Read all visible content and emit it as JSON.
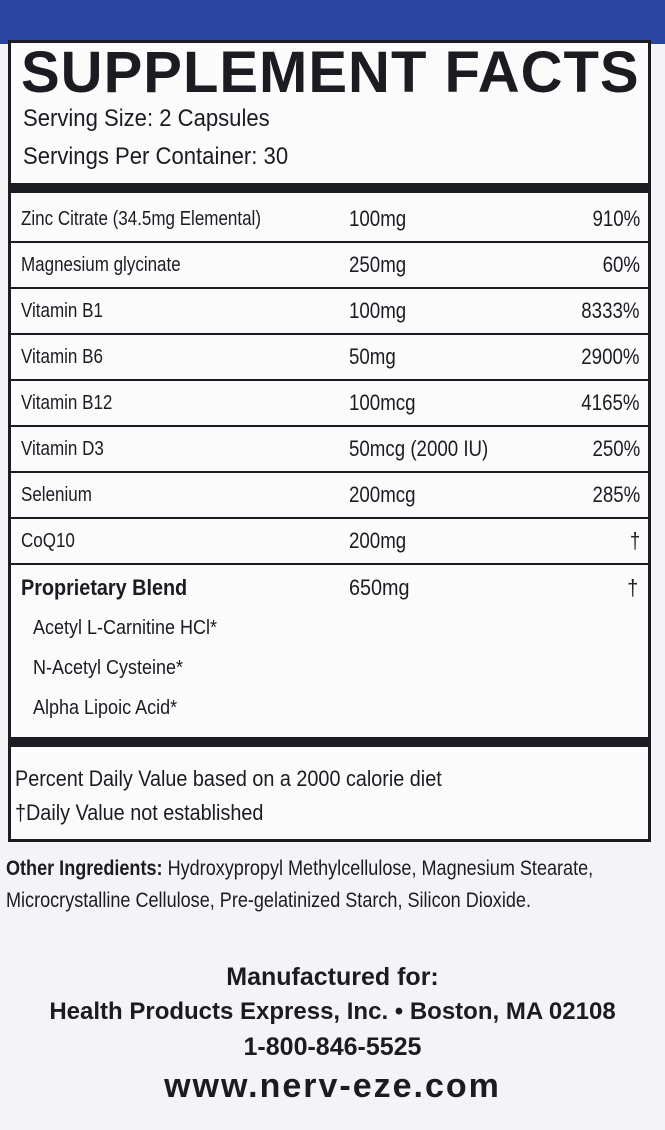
{
  "header": {
    "title": "SUPPLEMENT FACTS",
    "serving_size": "Serving Size: 2 Capsules",
    "servings_per_container": "Servings Per Container: 30"
  },
  "rows": [
    {
      "name": "Zinc Citrate (34.5mg Elemental)",
      "amount": "100mg",
      "dv": "910%"
    },
    {
      "name": "Magnesium glycinate",
      "amount": "250mg",
      "dv": "60%"
    },
    {
      "name": "Vitamin B1",
      "amount": "100mg",
      "dv": "8333%"
    },
    {
      "name": "Vitamin B6",
      "amount": "50mg",
      "dv": "2900%"
    },
    {
      "name": "Vitamin B12",
      "amount": "100mcg",
      "dv": "4165%"
    },
    {
      "name": "Vitamin D3",
      "amount": "50mcg (2000 IU)",
      "dv": "250%"
    },
    {
      "name": "Selenium",
      "amount": "200mcg",
      "dv": "285%"
    },
    {
      "name": "CoQ10",
      "amount": "200mg",
      "dv": "†"
    }
  ],
  "blend": {
    "name": "Proprietary Blend",
    "amount": "650mg",
    "dv": "†",
    "items": [
      "Acetyl L-Carnitine HCl*",
      "N-Acetyl Cysteine*",
      "Alpha Lipoic Acid*"
    ]
  },
  "footnotes": [
    "Percent Daily Value based on a 2000 calorie diet",
    "†Daily Value not established"
  ],
  "other": {
    "label": "Other Ingredients:",
    "text": " Hydroxypropyl Methylcellulose, Magnesium Stearate, Microcrystalline Cellulose, Pre-gelatinized Starch, Silicon Dioxide."
  },
  "manufacturer": {
    "label": "Manufactured for:",
    "company": "Health Products Express, Inc. • Boston, MA 02108",
    "phone": "1-800-846-5525",
    "website": "www.nerv-eze.com"
  },
  "colors": {
    "band": "#2b46a0",
    "ink": "#1b1b24"
  }
}
